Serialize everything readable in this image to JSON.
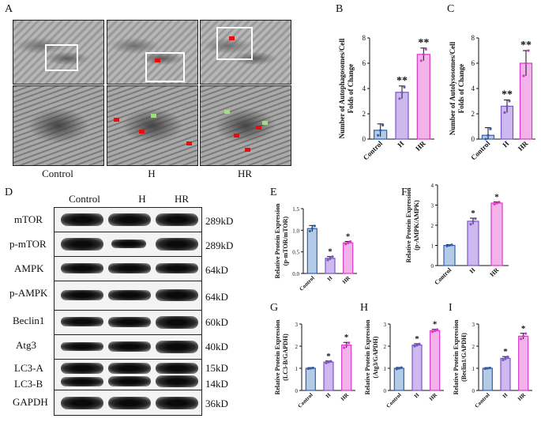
{
  "panel_letters": {
    "A": "A",
    "B": "B",
    "C": "C",
    "D": "D",
    "E": "E",
    "F": "F",
    "G": "G",
    "H": "H",
    "I": "I"
  },
  "em_groups": [
    "Control",
    "H",
    "HR"
  ],
  "blot": {
    "columns": [
      "Control",
      "H",
      "HR"
    ],
    "rows": [
      {
        "name": "mTOR",
        "kd": "289kD"
      },
      {
        "name": "p-mTOR",
        "kd": "289kD"
      },
      {
        "name": "AMPK",
        "kd": "64kD"
      },
      {
        "name": "p-AMPK",
        "kd": "64kD"
      },
      {
        "name": "Beclin1",
        "kd": "60kD"
      },
      {
        "name": "Atg3",
        "kd": "40kD"
      },
      {
        "name": "LC3-A",
        "kd": "15kD"
      },
      {
        "name": "LC3-B",
        "kd": "14kD"
      },
      {
        "name": "GAPDH",
        "kd": "36kD"
      }
    ]
  },
  "colors": {
    "control": "#2f5fb3",
    "control_fill": "#b3cbe6",
    "h": "#7a55c4",
    "h_fill": "#cdb9ef",
    "hr": "#d63ac7",
    "hr_fill": "#f3b3ea"
  },
  "chart_data": [
    {
      "id": "B",
      "type": "bar",
      "categories": [
        "Control",
        "H",
        "HR"
      ],
      "values": [
        0.7,
        3.7,
        6.7
      ],
      "errors": [
        0.5,
        0.5,
        0.5
      ],
      "significance": [
        "",
        "**",
        "**"
      ],
      "ylabel_lines": [
        "Number of Autophagosomes/Cell",
        "Folds of Change"
      ],
      "ylim": [
        0,
        8
      ],
      "yticks": [
        0,
        2,
        4,
        6,
        8
      ],
      "points": [
        [
          0.3,
          0.7,
          1.1
        ],
        [
          3.2,
          3.7,
          4.1
        ],
        [
          6.2,
          6.7,
          7.1
        ]
      ]
    },
    {
      "id": "C",
      "type": "bar",
      "categories": [
        "Control",
        "H",
        "HR"
      ],
      "values": [
        0.3,
        2.6,
        6.0
      ],
      "errors": [
        0.6,
        0.5,
        1.0
      ],
      "significance": [
        "",
        "**",
        "**"
      ],
      "ylabel_lines": [
        "Number of Autolysosomes/Cell",
        "Folds of Change"
      ],
      "ylim": [
        0,
        8
      ],
      "yticks": [
        0,
        2,
        4,
        6,
        8
      ],
      "points": [
        [
          0.0,
          0.3,
          0.8
        ],
        [
          2.1,
          2.6,
          3.0
        ],
        [
          5.0,
          6.0,
          7.0
        ]
      ]
    },
    {
      "id": "E",
      "type": "bar",
      "categories": [
        "Control",
        "H",
        "HR"
      ],
      "values": [
        1.04,
        0.35,
        0.71
      ],
      "errors": [
        0.07,
        0.04,
        0.03
      ],
      "significance": [
        "",
        "*",
        "*"
      ],
      "ylabel_lines": [
        "Relative Protein Expression",
        "(p-mTOR/mTOR)"
      ],
      "ylim": [
        0,
        1.5
      ],
      "yticks": [
        0.0,
        0.5,
        1.0,
        1.5
      ],
      "points": [
        [
          0.98,
          1.04,
          1.1
        ],
        [
          0.31,
          0.35,
          0.39
        ],
        [
          0.68,
          0.71,
          0.74
        ]
      ]
    },
    {
      "id": "F",
      "type": "bar",
      "categories": [
        "Control",
        "H",
        "HR"
      ],
      "values": [
        1.0,
        2.2,
        3.1
      ],
      "errors": [
        0.04,
        0.15,
        0.06
      ],
      "significance": [
        "",
        "*",
        "*"
      ],
      "ylabel_lines": [
        "Relative Protein Expression",
        "(p-AMPK/AMPK)"
      ],
      "ylim": [
        0,
        4
      ],
      "yticks": [
        0,
        1,
        2,
        3,
        4
      ],
      "points": [
        [
          0.97,
          1.0,
          1.03
        ],
        [
          2.05,
          2.2,
          2.33
        ],
        [
          3.05,
          3.1,
          3.15
        ]
      ]
    },
    {
      "id": "G",
      "type": "bar",
      "categories": [
        "Control",
        "H",
        "HR"
      ],
      "values": [
        1.0,
        1.28,
        2.05
      ],
      "errors": [
        0.03,
        0.05,
        0.12
      ],
      "significance": [
        "",
        "*",
        "*"
      ],
      "ylabel_lines": [
        "Relative Protein Expression",
        "(LC3-B/GAPDH)"
      ],
      "ylim": [
        0,
        3
      ],
      "yticks": [
        0,
        1,
        2,
        3
      ],
      "points": [
        [
          0.98,
          1.0,
          1.02
        ],
        [
          1.24,
          1.28,
          1.32
        ],
        [
          1.93,
          2.05,
          2.15
        ]
      ]
    },
    {
      "id": "H",
      "type": "bar",
      "categories": [
        "Control",
        "H",
        "HR"
      ],
      "values": [
        1.0,
        2.05,
        2.7
      ],
      "errors": [
        0.04,
        0.06,
        0.06
      ],
      "significance": [
        "",
        "*",
        "*"
      ],
      "ylabel_lines": [
        "Relative Protein Expression",
        "(Atg3/GAPDH)"
      ],
      "ylim": [
        0,
        3
      ],
      "yticks": [
        0,
        1,
        2,
        3
      ],
      "points": [
        [
          0.97,
          1.0,
          1.03
        ],
        [
          2.0,
          2.05,
          2.1
        ],
        [
          2.65,
          2.7,
          2.75
        ]
      ]
    },
    {
      "id": "I",
      "type": "bar",
      "categories": [
        "Control",
        "H",
        "HR"
      ],
      "values": [
        1.0,
        1.45,
        2.45
      ],
      "errors": [
        0.03,
        0.08,
        0.13
      ],
      "significance": [
        "",
        "*",
        "*"
      ],
      "ylabel_lines": [
        "Relative Protein Expression",
        "(Beclin1/GAPDH)"
      ],
      "ylim": [
        0,
        3
      ],
      "yticks": [
        0,
        1,
        2,
        3
      ],
      "points": [
        [
          0.98,
          1.0,
          1.02
        ],
        [
          1.38,
          1.45,
          1.52
        ],
        [
          2.33,
          2.45,
          2.57
        ]
      ]
    }
  ]
}
